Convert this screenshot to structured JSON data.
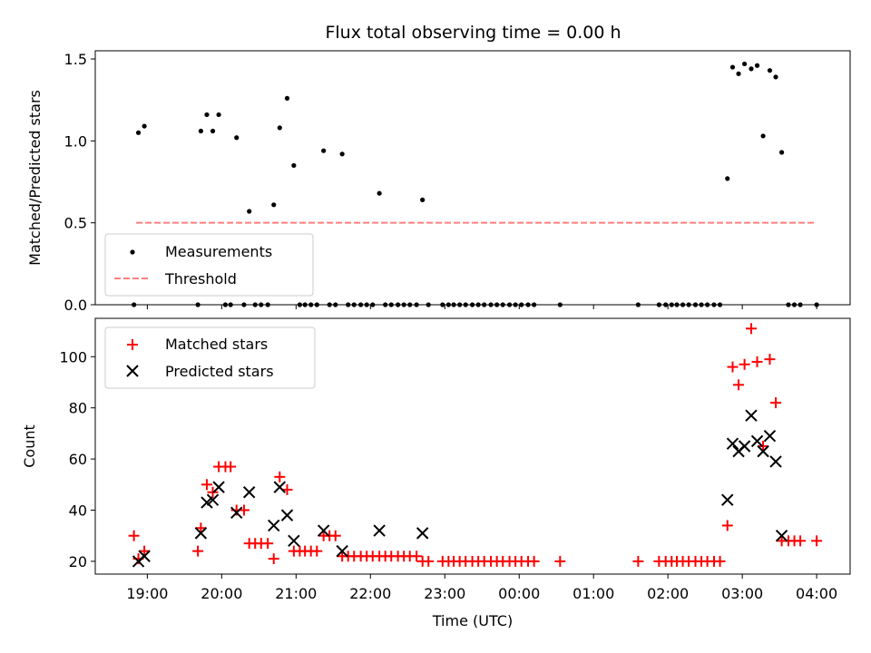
{
  "chart_data": [
    {
      "type": "scatter",
      "title": "Flux total observing time = 0.00 h",
      "xlabel": "",
      "ylabel": "Matched/Predicted stars",
      "xlim": [
        18.3,
        28.45
      ],
      "ylim": [
        0.0,
        1.55
      ],
      "yticks": [
        0.0,
        0.5,
        1.0,
        1.5
      ],
      "ytick_labels": [
        "0.0",
        "0.5",
        "1.0",
        "1.5"
      ],
      "legend": {
        "placement": "lower-left",
        "entries": [
          "Measurements",
          "Threshold"
        ]
      },
      "threshold": {
        "name": "Threshold",
        "value": 0.5,
        "x_range": [
          18.85,
          28.0
        ],
        "color": "#ff7f7f"
      },
      "series": [
        {
          "name": "Measurements",
          "marker": "dot",
          "color": "#000000",
          "x": [
            18.82,
            18.88,
            18.96,
            19.68,
            19.72,
            19.8,
            19.88,
            19.96,
            20.05,
            20.12,
            20.2,
            20.3,
            20.37,
            20.45,
            20.53,
            20.62,
            20.7,
            20.78,
            20.88,
            20.97,
            21.05,
            21.12,
            21.2,
            21.28,
            21.37,
            21.45,
            21.53,
            21.62,
            21.7,
            21.78,
            21.87,
            21.95,
            22.03,
            22.12,
            22.2,
            22.28,
            22.37,
            22.45,
            22.53,
            22.62,
            22.7,
            22.78,
            22.97,
            23.05,
            23.12,
            23.2,
            23.28,
            23.37,
            23.45,
            23.53,
            23.62,
            23.7,
            23.78,
            23.87,
            23.95,
            24.03,
            24.12,
            24.2,
            24.55,
            25.6,
            25.88,
            25.97,
            26.05,
            26.12,
            26.2,
            26.28,
            26.37,
            26.45,
            26.53,
            26.62,
            26.7,
            26.8,
            26.87,
            26.95,
            27.03,
            27.12,
            27.2,
            27.28,
            27.37,
            27.45,
            27.53,
            27.62,
            27.7,
            27.78,
            28.0
          ],
          "y": [
            0.0,
            1.05,
            1.09,
            0.0,
            1.06,
            1.16,
            1.06,
            1.16,
            0.0,
            0.0,
            1.02,
            0.0,
            0.57,
            0.0,
            0.0,
            0.0,
            0.61,
            1.08,
            1.26,
            0.85,
            0.0,
            0.0,
            0.0,
            0.0,
            0.94,
            0.0,
            0.0,
            0.92,
            0.0,
            0.0,
            0.0,
            0.0,
            0.0,
            0.68,
            0.0,
            0.0,
            0.0,
            0.0,
            0.0,
            0.0,
            0.64,
            0.0,
            0.0,
            0.0,
            0.0,
            0.0,
            0.0,
            0.0,
            0.0,
            0.0,
            0.0,
            0.0,
            0.0,
            0.0,
            0.0,
            0.0,
            0.0,
            0.0,
            0.0,
            0.0,
            0.0,
            0.0,
            0.0,
            0.0,
            0.0,
            0.0,
            0.0,
            0.0,
            0.0,
            0.0,
            0.0,
            0.77,
            1.45,
            1.41,
            1.47,
            1.44,
            1.46,
            1.03,
            1.43,
            1.39,
            0.93,
            0.0,
            0.0,
            0.0,
            0.0
          ]
        }
      ]
    },
    {
      "type": "scatter",
      "title": "",
      "xlabel": "Time (UTC)",
      "ylabel": "Count",
      "xlim": [
        18.3,
        28.45
      ],
      "ylim": [
        15,
        115
      ],
      "yticks": [
        20,
        40,
        60,
        80,
        100
      ],
      "ytick_labels": [
        "20",
        "40",
        "60",
        "80",
        "100"
      ],
      "xticks": [
        19,
        20,
        21,
        22,
        23,
        24,
        25,
        26,
        27,
        28
      ],
      "xtick_labels": [
        "19:00",
        "20:00",
        "21:00",
        "22:00",
        "23:00",
        "00:00",
        "01:00",
        "02:00",
        "03:00",
        "04:00"
      ],
      "legend": {
        "placement": "top-left",
        "entries": [
          "Matched stars",
          "Predicted stars"
        ]
      },
      "series": [
        {
          "name": "Matched stars",
          "marker": "plus",
          "color": "#ff0000",
          "x": [
            18.82,
            18.88,
            18.96,
            19.68,
            19.72,
            19.8,
            19.88,
            19.96,
            20.05,
            20.12,
            20.2,
            20.3,
            20.37,
            20.45,
            20.53,
            20.62,
            20.7,
            20.78,
            20.88,
            20.97,
            21.05,
            21.12,
            21.2,
            21.28,
            21.37,
            21.45,
            21.53,
            21.62,
            21.7,
            21.78,
            21.87,
            21.95,
            22.03,
            22.12,
            22.2,
            22.28,
            22.37,
            22.45,
            22.53,
            22.62,
            22.7,
            22.78,
            22.97,
            23.05,
            23.12,
            23.2,
            23.28,
            23.37,
            23.45,
            23.53,
            23.62,
            23.7,
            23.78,
            23.87,
            23.95,
            24.03,
            24.12,
            24.2,
            24.55,
            25.6,
            25.88,
            25.97,
            26.05,
            26.12,
            26.2,
            26.28,
            26.37,
            26.45,
            26.53,
            26.62,
            26.7,
            26.8,
            26.87,
            26.95,
            27.03,
            27.12,
            27.2,
            27.28,
            27.37,
            27.45,
            27.53,
            27.62,
            27.7,
            27.78,
            28.0
          ],
          "y": [
            30,
            21,
            24,
            24,
            33,
            50,
            47,
            57,
            57,
            57,
            40,
            40,
            27,
            27,
            27,
            27,
            21,
            53,
            48,
            24,
            24,
            24,
            24,
            24,
            30,
            30,
            30,
            22,
            22,
            22,
            22,
            22,
            22,
            22,
            22,
            22,
            22,
            22,
            22,
            22,
            20,
            20,
            20,
            20,
            20,
            20,
            20,
            20,
            20,
            20,
            20,
            20,
            20,
            20,
            20,
            20,
            20,
            20,
            20,
            20,
            20,
            20,
            20,
            20,
            20,
            20,
            20,
            20,
            20,
            20,
            20,
            34,
            96,
            89,
            97,
            111,
            98,
            65,
            99,
            82,
            28,
            28,
            28,
            28,
            28
          ]
        },
        {
          "name": "Predicted stars",
          "marker": "cross",
          "color": "#000000",
          "x": [
            18.88,
            18.96,
            19.72,
            19.8,
            19.88,
            19.96,
            20.2,
            20.37,
            20.7,
            20.78,
            20.88,
            20.97,
            21.37,
            21.62,
            22.12,
            22.7,
            26.8,
            26.87,
            26.95,
            27.03,
            27.12,
            27.2,
            27.28,
            27.37,
            27.45,
            27.53
          ],
          "y": [
            20,
            22,
            31,
            43,
            44,
            49,
            39,
            47,
            34,
            49,
            38,
            28,
            32,
            24,
            32,
            31,
            44,
            66,
            63,
            65,
            77,
            67,
            63,
            69,
            59,
            30
          ]
        }
      ]
    }
  ]
}
